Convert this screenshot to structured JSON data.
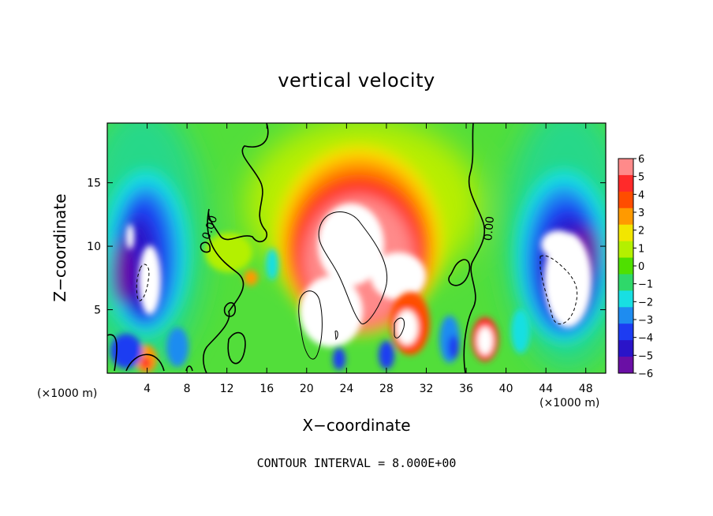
{
  "chart_data": {
    "type": "heatmap",
    "title": "vertical velocity",
    "xlabel": "X−coordinate",
    "ylabel": "Z−coordinate",
    "x_unit_label": "(×1000 m)",
    "caption": "CONTOUR INTERVAL = 8.000E+00",
    "xlim": [
      0,
      50
    ],
    "ylim": [
      0,
      19.7
    ],
    "x_ticks": [
      4,
      8,
      12,
      16,
      20,
      24,
      28,
      32,
      36,
      40,
      44,
      48
    ],
    "y_ticks": [
      5,
      10,
      15
    ],
    "contour_level_label": "0.00",
    "colorbar": {
      "levels": [
        6,
        5,
        4,
        3,
        2,
        1,
        0,
        -1,
        -2,
        -3,
        -4,
        -5,
        -6
      ],
      "tick_labels": [
        "6",
        "5",
        "4",
        "3",
        "2",
        "1",
        "0",
        "−1",
        "−2",
        "−3",
        "−4",
        "−5",
        "−6"
      ],
      "colors": [
        "#ff8a8a",
        "#ff2a2a",
        "#ff4d00",
        "#ff9a00",
        "#f2e600",
        "#b4f000",
        "#4fe000",
        "#2fd86a",
        "#18dfe2",
        "#1e8cf0",
        "#1d3cf2",
        "#2a14c8",
        "#6a0fa5"
      ],
      "saturation_color_high": "#ffffff",
      "saturation_color_low": "#ffffff"
    },
    "features": [
      {
        "kind": "updraft",
        "x": 24,
        "z": 10,
        "peak": 8
      },
      {
        "kind": "updraft",
        "x": 22,
        "z": 4,
        "peak": 7
      },
      {
        "kind": "updraft",
        "x": 38,
        "z": 2,
        "peak": 7
      },
      {
        "kind": "updraft",
        "x": 30,
        "z": 3,
        "peak": 6
      },
      {
        "kind": "downdraft",
        "x": 4,
        "z": 8,
        "peak": -9
      },
      {
        "kind": "downdraft",
        "x": 46,
        "z": 7,
        "peak": -9
      },
      {
        "kind": "downdraft",
        "x": 35,
        "z": 2.5,
        "peak": -4
      }
    ]
  }
}
